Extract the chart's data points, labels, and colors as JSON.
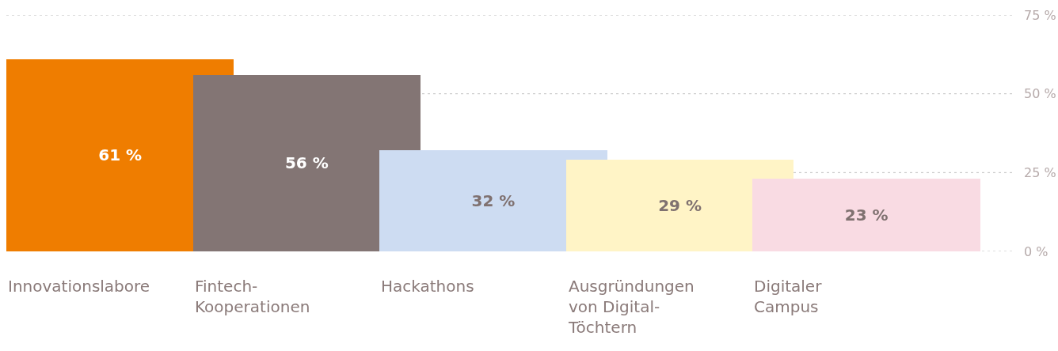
{
  "chart_data": {
    "type": "bar",
    "categories": [
      "Innovationslabore",
      "Fintech-Kooperationen",
      "Hackathons",
      "Ausgründungen von Digital-Töchtern",
      "Digitaler Campus"
    ],
    "values": [
      61,
      56,
      32,
      29,
      23
    ],
    "colors": [
      "#ef7d00",
      "#837574",
      "#cddcf2",
      "#fff4c6",
      "#f9dbe3"
    ],
    "value_labels": [
      "61 %",
      "56 %",
      "32 %",
      "29 %",
      "23 %"
    ],
    "ylim": [
      0,
      75
    ],
    "yticks": [
      {
        "value": 0,
        "label": "0 %"
      },
      {
        "value": 25,
        "label": "25 %"
      },
      {
        "value": 50,
        "label": "50 %"
      },
      {
        "value": 75,
        "label": "75 %"
      }
    ],
    "grid": "y"
  }
}
